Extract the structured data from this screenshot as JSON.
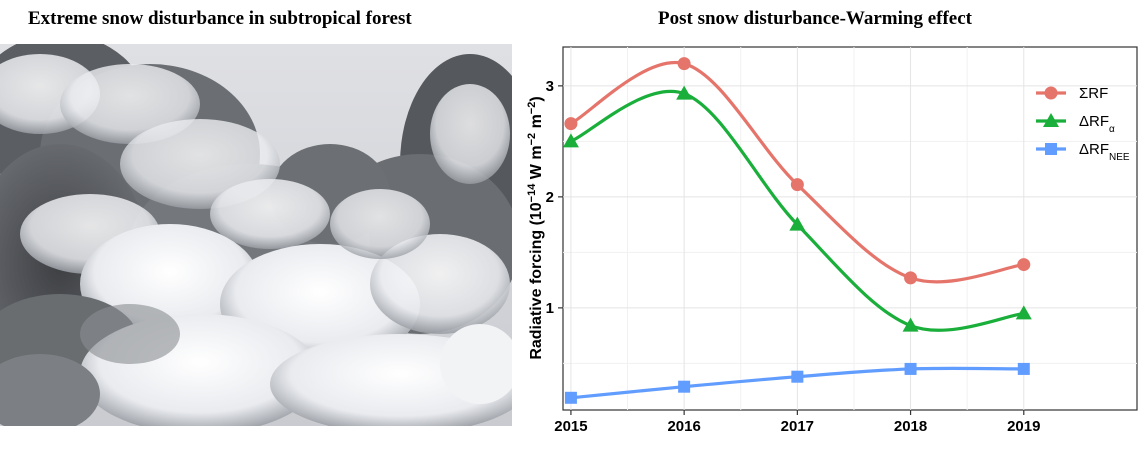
{
  "left_panel": {
    "title": "Extreme snow disturbance in subtropical forest"
  },
  "right_panel": {
    "title": "Post snow disturbance-Warming effect"
  },
  "chart_data": {
    "type": "line",
    "title": "Post snow disturbance-Warming effect",
    "xlabel": "",
    "ylabel": "Radiative forcing (10⁻¹⁴ W m⁻² m⁻²)",
    "ylabel_parts": {
      "main": "Radiative forcing (10",
      "exp1": "−14",
      "mid1": " W m",
      "exp2": "−2",
      "mid2": " m",
      "exp3": "−2",
      "end": ")"
    },
    "x": [
      2015,
      2016,
      2017,
      2018,
      2019
    ],
    "x_tick_labels": [
      "2015",
      "2016",
      "2017",
      "2018",
      "2019"
    ],
    "y_tick_labels": [
      "1",
      "2",
      "3"
    ],
    "y_ticks": [
      1,
      2,
      3
    ],
    "xlim": [
      2014.93,
      2020.0
    ],
    "ylim": [
      0.08,
      3.35
    ],
    "grid": true,
    "legend_position": "top-right",
    "series": [
      {
        "name": "ΣRF",
        "legend_main": "ΣRF",
        "legend_sub": "",
        "color": "#E5746B",
        "marker": "circle",
        "values": [
          2.66,
          3.2,
          2.11,
          1.27,
          1.39
        ]
      },
      {
        "name": "ΔRFα",
        "legend_main": "ΔRF",
        "legend_sub": "α",
        "color": "#1AAE3A",
        "marker": "triangle",
        "values": [
          2.5,
          2.93,
          1.75,
          0.84,
          0.95
        ]
      },
      {
        "name": "ΔRFNEE",
        "legend_main": "ΔRF",
        "legend_sub": "NEE",
        "color": "#619CFF",
        "marker": "square",
        "values": [
          0.19,
          0.29,
          0.38,
          0.45,
          0.45
        ]
      }
    ]
  }
}
